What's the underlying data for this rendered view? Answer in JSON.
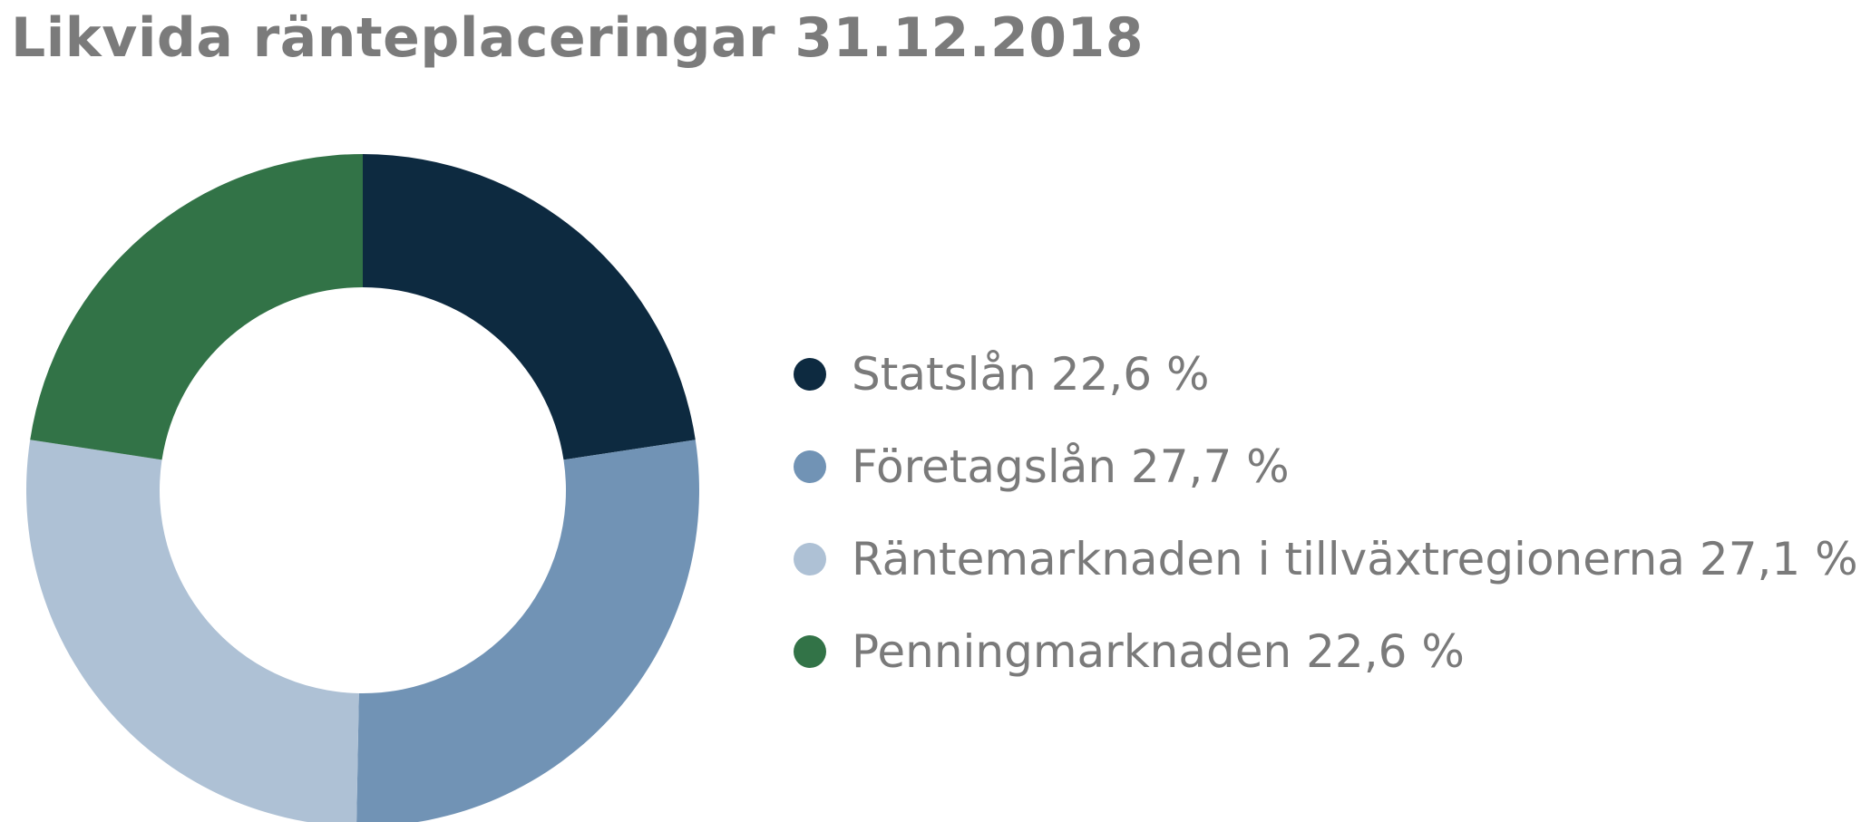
{
  "chart_data": {
    "type": "pie",
    "title": "Likvida ränteplaceringar 31.12.2018",
    "donut": true,
    "legend_position": "right",
    "series": [
      {
        "name": "Statslån",
        "value": 22.6,
        "label": "Statslån 22,6 %",
        "color": "#0d2a40"
      },
      {
        "name": "Företagslån",
        "value": 27.7,
        "label": "Företagslån 27,7 %",
        "color": "#7193b5"
      },
      {
        "name": "Räntemarknaden i tillväxtregionerna",
        "value": 27.1,
        "label": "Räntemarknaden i tillväxtregionerna 27,1 %",
        "color": "#aec1d5"
      },
      {
        "name": "Penningmarknaden",
        "value": 22.6,
        "label": "Penningmarknaden 22,6 %",
        "color": "#327347"
      }
    ]
  }
}
